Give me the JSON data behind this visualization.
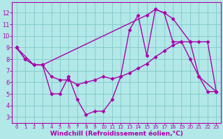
{
  "background_color": "#b2e8e8",
  "grid_color": "#88cccc",
  "line_color": "#aa00aa",
  "marker": "D",
  "markersize": 2.5,
  "linewidth": 1.0,
  "xlabel": "Windchill (Refroidissement éolien,°C)",
  "xlabel_fontsize": 6.5,
  "xlabel_fontweight": "bold",
  "xtick_fontsize": 5.2,
  "ytick_fontsize": 6.0,
  "xlim": [
    -0.5,
    23.5
  ],
  "ylim": [
    2.5,
    12.9
  ],
  "yticks": [
    3,
    4,
    5,
    6,
    7,
    8,
    9,
    10,
    11,
    12
  ],
  "xticks": [
    0,
    1,
    2,
    3,
    4,
    5,
    6,
    7,
    8,
    9,
    10,
    11,
    12,
    13,
    14,
    15,
    16,
    17,
    18,
    19,
    20,
    21,
    22,
    23
  ],
  "line1_x": [
    0,
    1,
    2,
    3,
    4,
    5,
    6,
    7,
    8,
    9,
    10,
    11,
    12,
    13,
    14,
    15,
    16,
    17,
    18,
    19,
    20,
    21,
    22,
    23
  ],
  "line1_y": [
    9.0,
    8.0,
    7.5,
    7.5,
    5.0,
    5.0,
    6.5,
    4.5,
    3.2,
    3.5,
    3.5,
    4.5,
    6.5,
    10.5,
    11.8,
    8.3,
    12.3,
    12.0,
    9.5,
    9.5,
    8.0,
    6.5,
    5.2,
    5.2
  ],
  "line2_x": [
    0,
    1,
    2,
    3,
    4,
    5,
    6,
    7,
    8,
    9,
    10,
    11,
    12,
    13,
    14,
    15,
    16,
    17,
    18,
    19,
    20,
    21,
    22,
    23
  ],
  "line2_y": [
    9.0,
    8.0,
    7.5,
    7.5,
    6.5,
    6.2,
    6.2,
    5.8,
    6.0,
    6.2,
    6.5,
    6.3,
    6.5,
    6.8,
    7.2,
    7.6,
    8.2,
    8.7,
    9.2,
    9.5,
    9.5,
    9.5,
    9.5,
    5.2
  ],
  "line3_x": [
    0,
    2,
    3,
    15,
    16,
    17,
    18,
    20,
    21,
    23
  ],
  "line3_y": [
    9.0,
    7.5,
    7.5,
    11.8,
    12.3,
    12.0,
    11.5,
    9.5,
    6.5,
    5.2
  ]
}
